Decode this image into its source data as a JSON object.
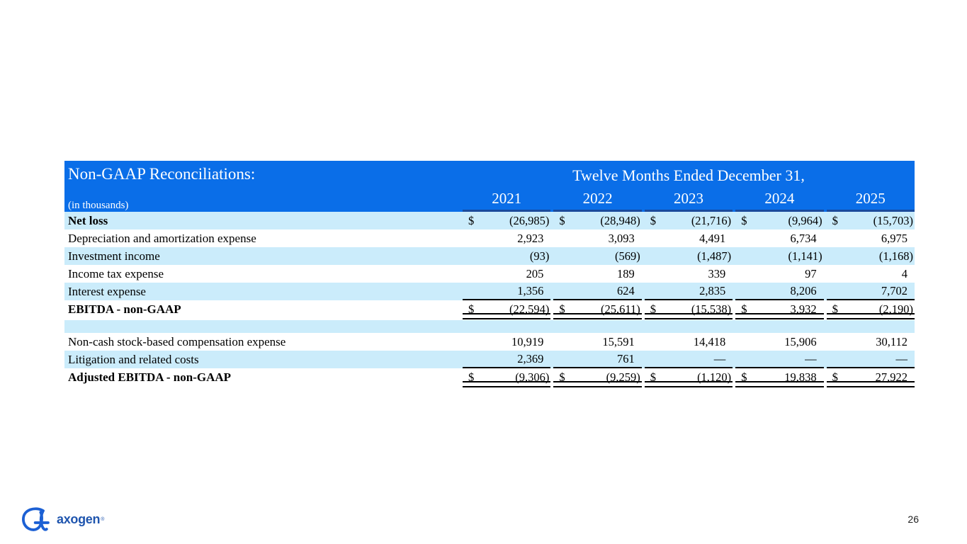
{
  "slide": {
    "page_number": "26"
  },
  "logo": {
    "brand": "axogen",
    "registered_mark": "®"
  },
  "colors": {
    "header_blue": "#0a6ee8",
    "stripe_blue": "#cbecfb",
    "header_underline": "#1a4a9b",
    "border_black": "#000000",
    "logo_mark_blue": "#1c60d4",
    "logo_text_blue": "#1f55ae"
  },
  "table": {
    "title": "Non-GAAP Reconciliations:",
    "units_note": "(in thousands)",
    "period_header": "Twelve Months Ended December 31,",
    "currency_symbol": "$",
    "years": [
      "2021",
      "2022",
      "2023",
      "2024",
      "2025"
    ],
    "rows": [
      {
        "label": "Net loss",
        "bold": true,
        "dollar": true,
        "stripe": true,
        "values": [
          "(26,985)",
          "(28,948)",
          "(21,716)",
          "(9,964)",
          "(15,703)"
        ]
      },
      {
        "label": "Depreciation and amortization expense",
        "values": [
          "2,923",
          "3,093",
          "4,491",
          "6,734",
          "6,975"
        ]
      },
      {
        "label": "Investment income",
        "stripe": true,
        "values": [
          "(93)",
          "(569)",
          "(1,487)",
          "(1,141)",
          "(1,168)"
        ]
      },
      {
        "label": "Income tax expense",
        "values": [
          "205",
          "189",
          "339",
          "97",
          "4"
        ]
      },
      {
        "label": "Interest expense",
        "stripe": true,
        "border": "single",
        "values": [
          "1,356",
          "624",
          "2,835",
          "8,206",
          "7,702"
        ]
      },
      {
        "label": "EBITDA - non-GAAP",
        "bold": true,
        "dollar": true,
        "border": "double",
        "values": [
          "(22,594)",
          "(25,611)",
          "(15,538)",
          "3,932",
          "(2,190)"
        ]
      },
      {
        "label": "",
        "spacer": true,
        "stripe": true,
        "values": [
          "",
          "",
          "",
          "",
          ""
        ]
      },
      {
        "label": "Non-cash stock-based compensation expense",
        "values": [
          "10,919",
          "15,591",
          "14,418",
          "15,906",
          "30,112"
        ]
      },
      {
        "label": "Litigation and related costs",
        "stripe": true,
        "border": "single",
        "values": [
          "2,369",
          "761",
          "—",
          "—",
          "—"
        ]
      },
      {
        "label": "Adjusted EBITDA - non-GAAP",
        "bold": true,
        "dollar": true,
        "border": "double",
        "values": [
          "(9,306)",
          "(9,259)",
          "(1,120)",
          "19,838",
          "27,922"
        ]
      }
    ]
  }
}
